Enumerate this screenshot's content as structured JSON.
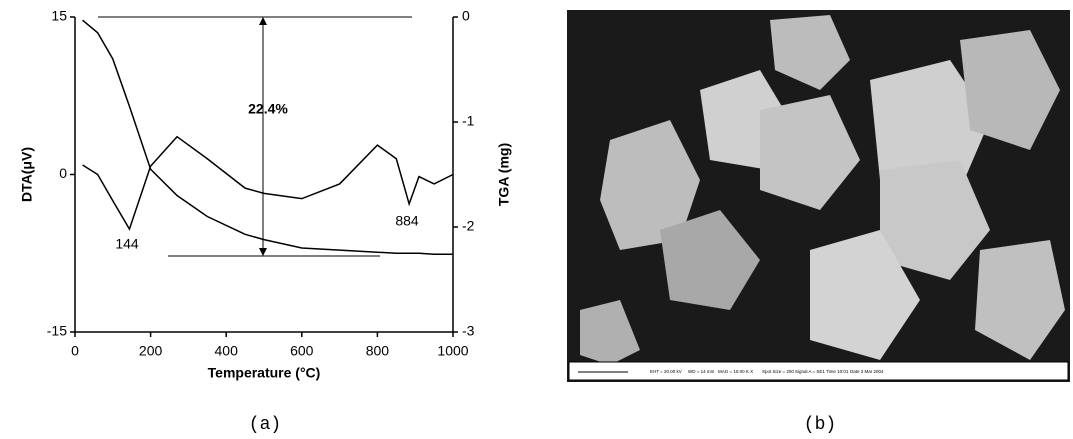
{
  "chart_data": {
    "type": "line",
    "x_label": "Temperature (°C)",
    "y_label": "DTA(μV)",
    "y2_label": "TGA (mg)",
    "x": [
      20,
      60,
      100,
      144,
      200,
      270,
      350,
      450,
      500,
      600,
      700,
      800,
      850,
      884,
      910,
      950,
      1000
    ],
    "series": [
      {
        "name": "DTA",
        "color": "#000000",
        "values": [
          0.9,
          0,
          -2.5,
          -5.2,
          0.8,
          3.6,
          1.5,
          -1.3,
          -1.8,
          -2.3,
          -0.9,
          2.8,
          1.5,
          -2.8,
          -0.2,
          -0.9,
          0
        ]
      },
      {
        "name": "TGA",
        "color": "#000000",
        "axis": "y2",
        "values": [
          -0.03,
          -0.15,
          -0.4,
          -0.85,
          -1.45,
          -1.7,
          -1.9,
          -2.07,
          -2.12,
          -2.2,
          -2.22,
          -2.24,
          -2.25,
          -2.25,
          -2.25,
          -2.26,
          -2.26
        ]
      }
    ],
    "xlim": [
      0,
      1000
    ],
    "xticks": [
      0,
      200,
      400,
      600,
      800,
      1000
    ],
    "ylim": [
      -15,
      15
    ],
    "yticks": [
      -15,
      0,
      15
    ],
    "y2lim": [
      -3,
      0
    ],
    "y2ticks": [
      0,
      -1,
      -2,
      -3
    ],
    "annotations": [
      "144",
      "884",
      "22.4%"
    ]
  },
  "captions": [
    "(a)",
    "(b)"
  ],
  "micrograph": {
    "info": [
      "EHT = 20.00 kV",
      "WD = 14 mm",
      "MAG = 10.00 K X",
      "Spot Size = 200",
      "Signal A = SE1",
      "Time 10:01",
      "Date 3 Mar 2004"
    ]
  }
}
